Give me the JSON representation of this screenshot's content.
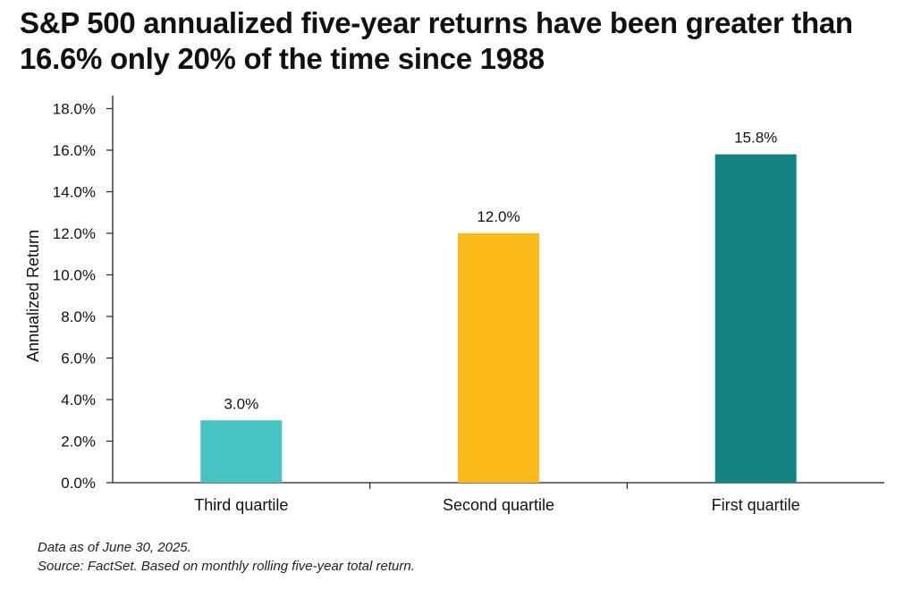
{
  "title": "S&P 500 annualized five-year returns have been greater than 16.6% only 20% of the time since 1988",
  "chart_data": {
    "type": "bar",
    "categories": [
      "Third quartile",
      "Second quartile",
      "First quartile"
    ],
    "values": [
      3.0,
      12.0,
      15.8
    ],
    "value_labels": [
      "3.0%",
      "12.0%",
      "15.8%"
    ],
    "colors": [
      "#48C3C3",
      "#FBBA19",
      "#138382"
    ],
    "ylabel": "Annualized Return",
    "xlabel": "",
    "ylim": [
      0,
      18
    ],
    "yticks": [
      0,
      2,
      4,
      6,
      8,
      10,
      12,
      14,
      16,
      18
    ],
    "ytick_labels": [
      "0.0%",
      "2.0%",
      "4.0%",
      "6.0%",
      "8.0%",
      "10.0%",
      "12.0%",
      "14.0%",
      "16.0%",
      "18.0%"
    ],
    "grid": false,
    "legend": "none"
  },
  "notes": {
    "date": "Data as of June 30, 2025.",
    "source": "Source: FactSet. Based on monthly rolling five-year total return."
  }
}
